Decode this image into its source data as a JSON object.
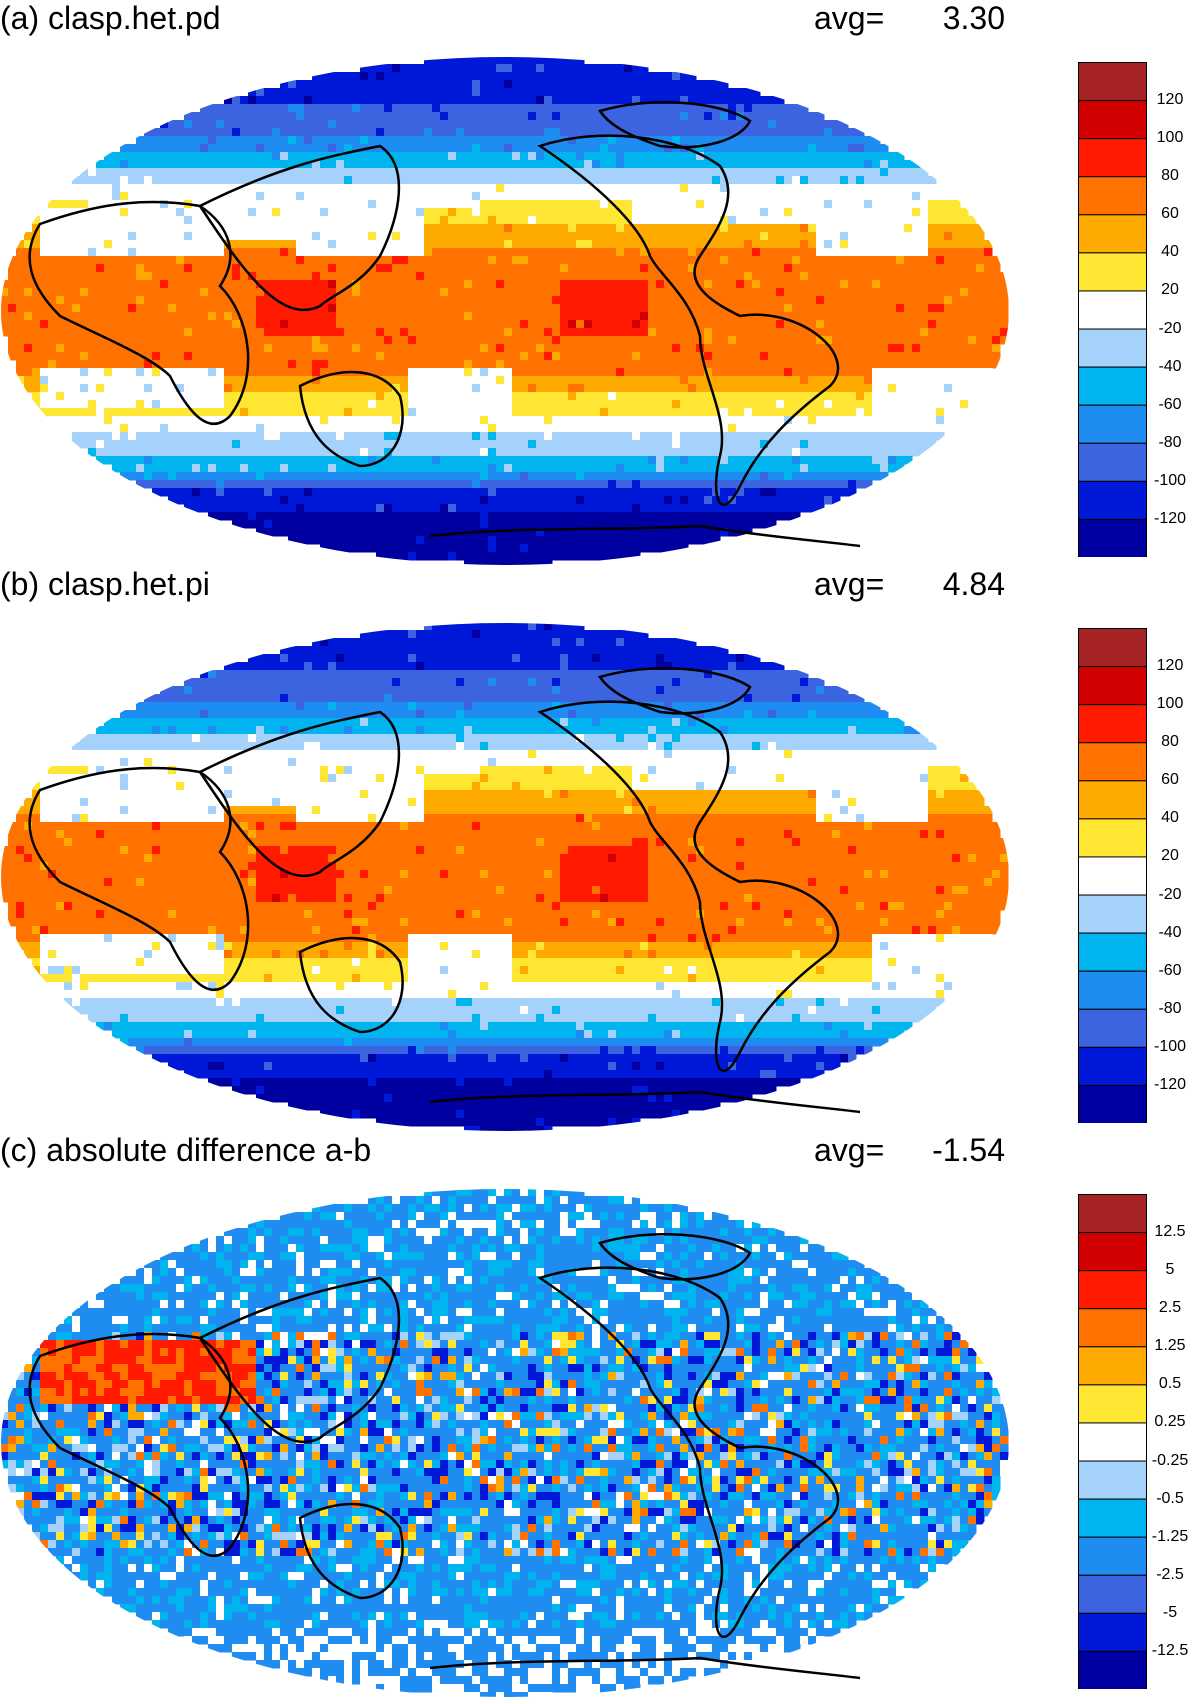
{
  "colors": {
    "ramp": [
      "#0000a0",
      "#0018d8",
      "#3c64e0",
      "#1e8cf0",
      "#00b4f0",
      "#a4d2fa",
      "#ffffff",
      "#ffe632",
      "#ffaa00",
      "#ff7200",
      "#ff1a00",
      "#d20000",
      "#a52323"
    ],
    "coast": "#000000"
  },
  "panels": [
    {
      "title": "(a) clasp.het.pd",
      "avg_label": "avg=",
      "avg_value": "3.30",
      "field": "pd",
      "colorbar_labels": [
        "120",
        "100",
        "80",
        "60",
        "40",
        "20",
        "-20",
        "-40",
        "-60",
        "-80",
        "-100",
        "-120"
      ]
    },
    {
      "title": "(b) clasp.het.pi",
      "avg_label": "avg=",
      "avg_value": "4.84",
      "field": "pi",
      "colorbar_labels": [
        "120",
        "100",
        "80",
        "60",
        "40",
        "20",
        "-20",
        "-40",
        "-60",
        "-80",
        "-100",
        "-120"
      ]
    },
    {
      "title": "(c) absolute difference a-b",
      "avg_label": "avg=",
      "avg_value": "-1.54",
      "field": "diff",
      "colorbar_labels": [
        "12.5",
        "5",
        "2.5",
        "1.25",
        "0.5",
        "0.25",
        "-0.25",
        "-0.5",
        "-1.25",
        "-2.5",
        "-5",
        "-12.5"
      ]
    }
  ]
}
